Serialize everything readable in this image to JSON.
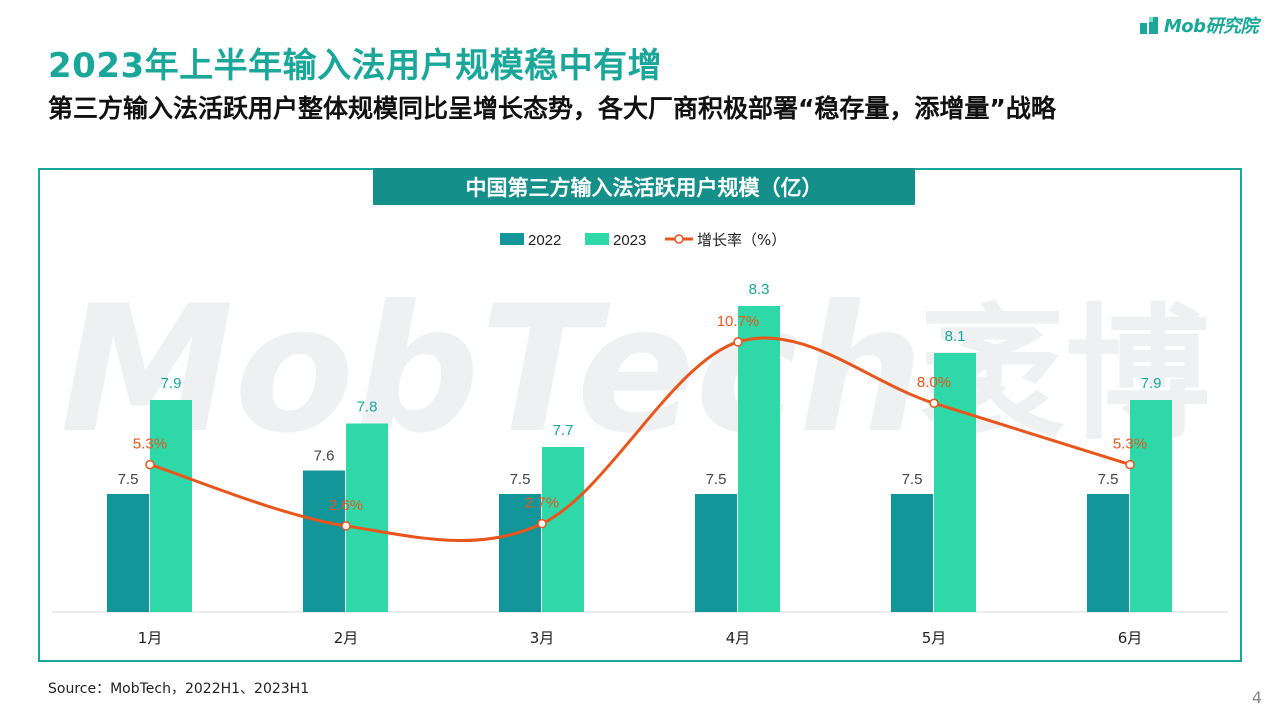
{
  "brand": {
    "logo_text": "Mob研究院"
  },
  "title": "2023年上半年输入法用户规模稳中有增",
  "subtitle": "第三方输入法活跃用户整体规模同比呈增长态势，各大厂商积极部署“稳存量，添增量”战略",
  "watermark": "MobTech 袤博",
  "source": "Source：MobTech，2022H1、2023H1",
  "page_number": "4",
  "colors": {
    "bar_2022": "#12969a",
    "bar_2023": "#2fd8a8",
    "line": "#e8561c",
    "accent": "#1aa79a"
  },
  "chart_data": {
    "type": "bar",
    "title": "中国第三方输入法活跃用户规模（亿）",
    "categories": [
      "1月",
      "2月",
      "3月",
      "4月",
      "5月",
      "6月"
    ],
    "series": [
      {
        "name": "2022",
        "type": "bar",
        "values": [
          7.5,
          7.6,
          7.5,
          7.5,
          7.5,
          7.5
        ]
      },
      {
        "name": "2023",
        "type": "bar",
        "values": [
          7.9,
          7.8,
          7.7,
          8.3,
          8.1,
          7.9
        ]
      },
      {
        "name": "增长率（%）",
        "type": "line",
        "values": [
          5.3,
          2.6,
          2.7,
          10.7,
          8.0,
          5.3
        ],
        "labels": [
          "5.3%",
          "2.6%",
          "2.7%",
          "10.7%",
          "8.0%",
          "5.3%"
        ]
      }
    ],
    "bar_axis_range": [
      7.0,
      8.4
    ],
    "line_axis_range": [
      0,
      12.5
    ],
    "legend_position": "top-center",
    "grid": false
  }
}
